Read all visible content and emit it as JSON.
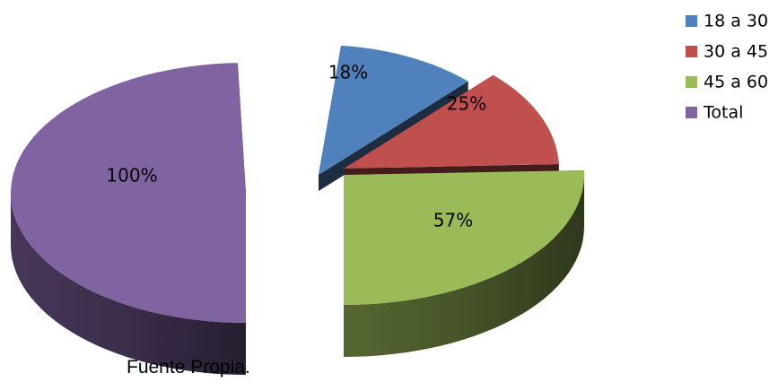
{
  "chart_data": {
    "type": "pie",
    "title": "",
    "style": "3d-exploded",
    "categories": [
      "18 a 30",
      "30 a 45",
      "45 a 60",
      "Total"
    ],
    "values": [
      18,
      25,
      57,
      100
    ],
    "data_labels": [
      "18%",
      "25%",
      "57%",
      "100%"
    ],
    "colors": [
      "#4f81bd",
      "#c0504d",
      "#9bbb59",
      "#8064a2"
    ],
    "legend": {
      "position": "right",
      "entries": [
        "18 a 30",
        "30 a 45",
        "45 a 60",
        "Total"
      ]
    }
  },
  "caption": "Fuente Propia."
}
